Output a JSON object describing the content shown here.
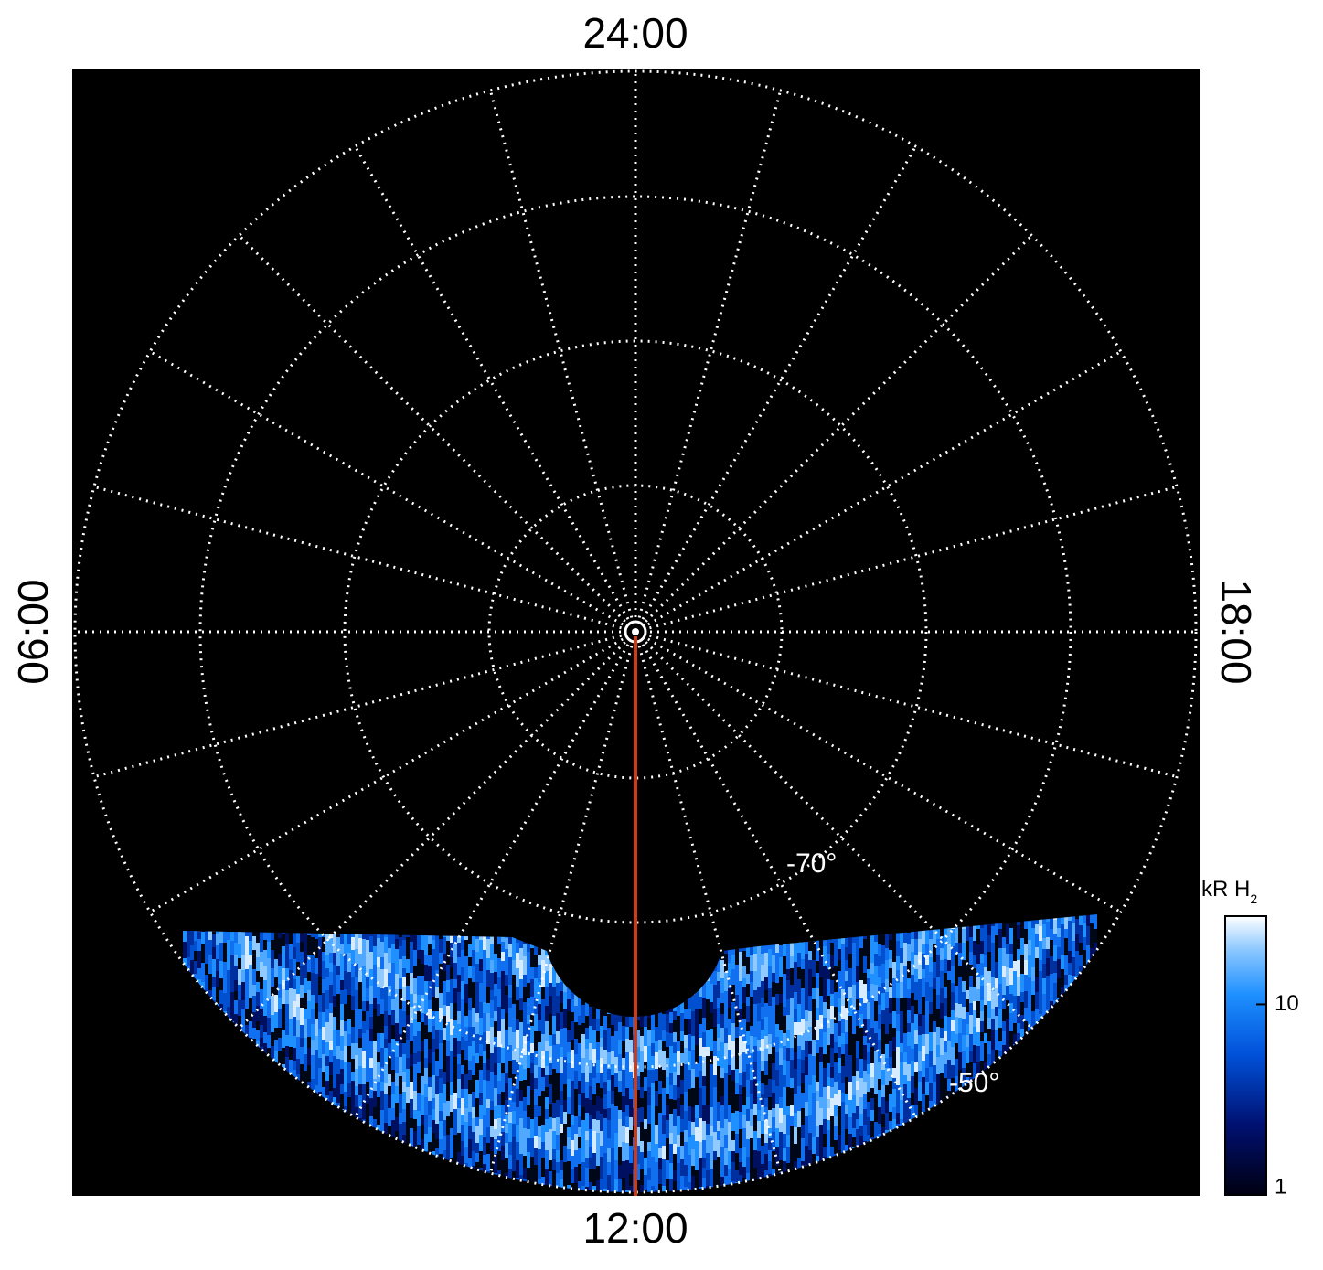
{
  "time_labels": {
    "top": "24:00",
    "bottom": "12:00",
    "left": "06:00",
    "right": "18:00"
  },
  "latitude_labels": [
    "-70°",
    "-50°"
  ],
  "colorbar": {
    "title": "kR H",
    "title_subscript": "2",
    "scale": "log",
    "range": [
      1,
      29
    ],
    "ticks": [
      1,
      10
    ]
  }
}
